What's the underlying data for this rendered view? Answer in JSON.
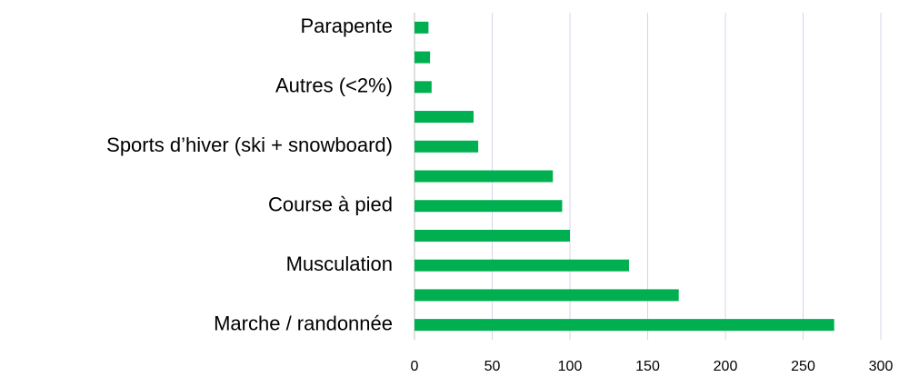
{
  "chart_data": {
    "type": "bar",
    "orientation": "horizontal",
    "categories": [
      "Parapente",
      null,
      "Autres (<2%)",
      null,
      "Sports d’hiver (ski + snowboard)",
      null,
      "Course à pied",
      null,
      "Musculation",
      null,
      "Marche / randonnée"
    ],
    "values": [
      9,
      10,
      11,
      38,
      41,
      89,
      95,
      100,
      138,
      170,
      270
    ],
    "color": "#00b050",
    "xlim": [
      0,
      300
    ],
    "xticks": [
      0,
      50,
      100,
      150,
      200,
      250,
      300
    ],
    "grid": true
  }
}
